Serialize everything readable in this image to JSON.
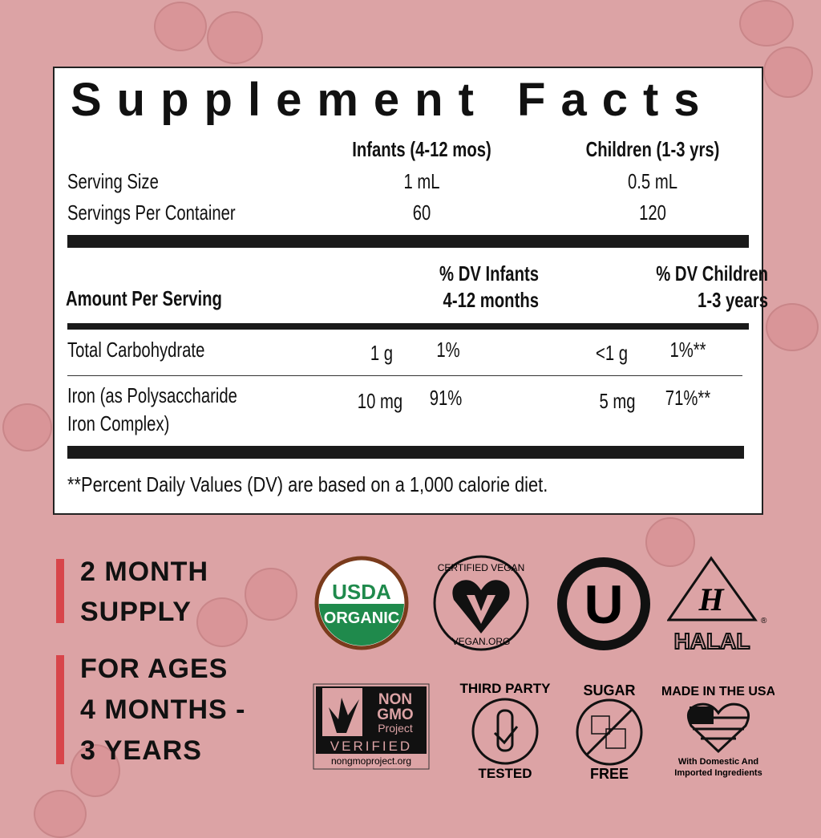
{
  "facts": {
    "title": "Supplement Facts",
    "col_infants": "Infants (4-12 mos)",
    "col_children": "Children (1-3 yrs)",
    "serving_size_label": "Serving Size",
    "serving_size_infants": "1 mL",
    "serving_size_children": "0.5 mL",
    "servings_label": "Servings Per Container",
    "servings_infants": "60",
    "servings_children": "120",
    "amount_label": "Amount Per Serving",
    "dv_infants_1": "% DV Infants",
    "dv_infants_2": "4-12 months",
    "dv_children_1": "% DV Children",
    "dv_children_2": "1-3 years",
    "rows": [
      {
        "name": "Total Carbohydrate",
        "name2": "",
        "inf_amt": "1 g",
        "inf_dv": "1%",
        "ch_amt": "<1 g",
        "ch_dv": "1%**"
      },
      {
        "name": "Iron (as Polysaccharide",
        "name2": "Iron Complex)",
        "inf_amt": "10 mg",
        "inf_dv": "91%",
        "ch_amt": "5 mg",
        "ch_dv": "71%**"
      }
    ],
    "footnote": "**Percent Daily Values (DV) are based on a 1,000 calorie diet."
  },
  "claims": {
    "supply_1": "2 MONTH",
    "supply_2": "SUPPLY",
    "ages_1": "FOR AGES",
    "ages_2": "4 MONTHS -",
    "ages_3": "3 YEARS",
    "accent": "#d8454a"
  },
  "badges": {
    "usda_1": "USDA",
    "usda_2": "ORGANIC",
    "vegan_top": "CERTIFIED VEGAN",
    "vegan_bottom": "VEGAN.ORG",
    "kosher": "U",
    "halal_h": "H",
    "halal": "HALAL",
    "reg": "®",
    "nongmo_1": "NON",
    "nongmo_2": "GMO",
    "nongmo_3": "Project",
    "nongmo_4": "VERIFIED",
    "nongmo_url": "nongmoproject.org",
    "third_top": "THIRD PARTY",
    "third_bottom": "TESTED",
    "sugar_top": "SUGAR",
    "sugar_bottom": "FREE",
    "usa_top": "MADE IN THE USA",
    "usa_1": "With Domestic And",
    "usa_2": "Imported Ingredients"
  },
  "colors": {
    "background": "#dca3a5",
    "usda_green": "#1f8a4c",
    "usda_brown": "#7a3b1c"
  }
}
